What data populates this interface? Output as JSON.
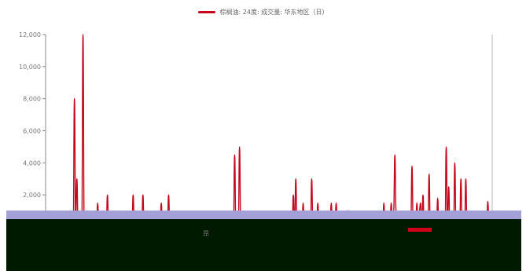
{
  "legend": {
    "label": "棕榈油: 24度: 成交量: 华东地区（日）",
    "color": "#c4071d"
  },
  "colors": {
    "line": "#c4071d",
    "axis": "#8a8a8a",
    "tick_text": "#777777",
    "dark_band": "#001a00",
    "lavender_band": "#a3a0d8"
  },
  "zoom_label": "昂",
  "chart_data": {
    "type": "line",
    "title": "",
    "xlabel": "",
    "ylabel": "",
    "ylim": [
      0,
      12000
    ],
    "y_ticks": [
      2000,
      4000,
      6000,
      8000,
      10000,
      12000
    ],
    "y_tick_labels": [
      "2,000",
      "4,000",
      "6,000",
      "8,000",
      "10,000",
      "12,000"
    ],
    "grid": false,
    "legend_position": "top-center",
    "series": [
      {
        "name": "棕榈油: 24度: 成交量: 华东地区（日）",
        "values": [
          0,
          0,
          0,
          0,
          0,
          0,
          0,
          0,
          0,
          0,
          0,
          0,
          0,
          0,
          0,
          0,
          0,
          0,
          0,
          0,
          0,
          8000,
          300,
          3000,
          0,
          0,
          1000,
          0,
          12000,
          300,
          0,
          0,
          0,
          0,
          0,
          0,
          0,
          0,
          0,
          0,
          1500,
          0,
          0,
          0,
          0,
          0,
          0,
          0,
          2000,
          0,
          1000,
          0,
          0,
          0,
          0,
          0,
          0,
          0,
          0,
          0,
          1000,
          0,
          1000,
          0,
          0,
          0,
          0,
          0,
          0,
          2000,
          0,
          0,
          0,
          0,
          0,
          1000,
          0,
          2000,
          0,
          1000,
          0,
          0,
          0,
          0,
          1000,
          0,
          0,
          0,
          0,
          0,
          1000,
          0,
          1500,
          0,
          1000,
          0,
          0,
          0,
          2000,
          0,
          0,
          0,
          0,
          0,
          0,
          0,
          1000,
          0,
          0,
          0,
          0,
          0,
          0,
          0,
          0,
          0,
          0,
          0,
          0,
          0,
          0,
          0,
          0,
          500,
          0,
          0,
          0,
          0,
          0,
          0,
          0,
          0,
          0,
          0,
          0,
          0,
          0,
          0,
          0,
          0,
          0,
          0,
          0,
          0,
          0,
          0,
          0,
          0,
          0,
          0,
          0,
          0,
          4500,
          0,
          0,
          0,
          5000,
          0,
          0,
          0,
          0,
          0,
          0,
          0,
          0,
          0,
          0,
          0,
          0,
          0,
          1000,
          0,
          0,
          0,
          0,
          0,
          0,
          0,
          0,
          0,
          0,
          1000,
          0,
          500,
          0,
          0,
          0,
          0,
          0,
          0,
          0,
          1000,
          0,
          0,
          0,
          0,
          0,
          0,
          0,
          0,
          2000,
          0,
          3000,
          0,
          0,
          0,
          0,
          0,
          1500,
          0,
          1000,
          0,
          0,
          0,
          0,
          3000,
          0,
          0,
          0,
          0,
          1500,
          0,
          0,
          0,
          0,
          0,
          0,
          0,
          0,
          0,
          0,
          1500,
          0,
          1000,
          0,
          1500,
          0,
          0,
          0,
          0,
          0,
          0,
          0,
          1000,
          1000,
          1000,
          1000,
          0,
          0,
          0,
          0,
          0,
          0,
          0,
          0,
          0,
          0,
          0,
          0,
          0,
          0,
          0,
          0,
          0,
          0,
          0,
          0,
          0,
          0,
          0,
          0,
          300,
          500,
          0,
          1500,
          0,
          1000,
          0,
          500,
          0,
          1500,
          0,
          1000,
          4500,
          1000,
          0,
          0,
          0,
          0,
          0,
          0,
          500,
          0,
          0,
          1000,
          0,
          0,
          3800,
          0,
          0,
          0,
          1500,
          0,
          1000,
          1500,
          0,
          2000,
          0,
          0,
          0,
          0,
          3300,
          0,
          0,
          0,
          0,
          0,
          0,
          1800,
          0,
          0,
          0,
          0,
          0,
          0,
          5000,
          0,
          2500,
          0,
          0,
          0,
          0,
          4000,
          0,
          0,
          0,
          0,
          3000,
          0,
          0,
          0,
          3000,
          0,
          1000,
          0,
          0,
          0,
          0,
          0,
          0,
          0,
          0,
          0,
          0,
          0,
          0,
          0,
          0,
          0,
          1600,
          0
        ]
      }
    ]
  }
}
